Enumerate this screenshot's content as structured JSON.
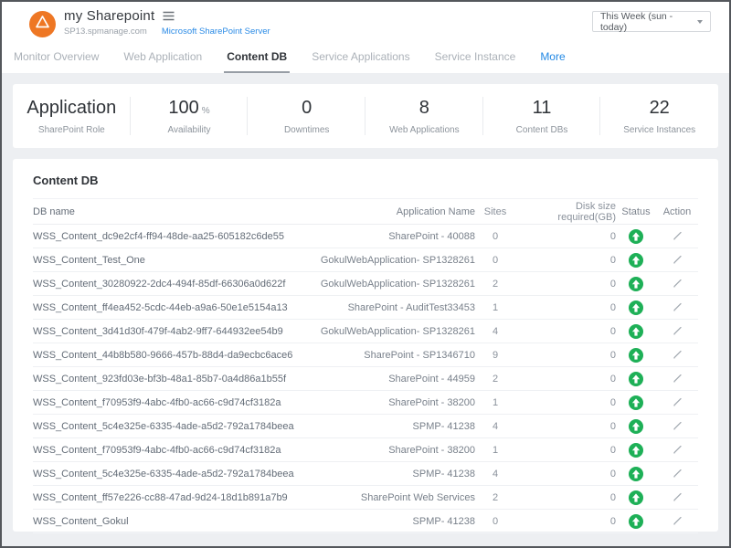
{
  "header": {
    "title": "my Sharepoint",
    "subdomain": "SP13.spmanage.com",
    "server_link": "Microsoft SharePoint Server",
    "time_range": "This Week (sun - today)"
  },
  "tabs": [
    {
      "label": "Monitor Overview",
      "active": false,
      "accent": false
    },
    {
      "label": "Web Application",
      "active": false,
      "accent": false
    },
    {
      "label": "Content DB",
      "active": true,
      "accent": false
    },
    {
      "label": "Service Applications",
      "active": false,
      "accent": false
    },
    {
      "label": "Service Instance",
      "active": false,
      "accent": false
    },
    {
      "label": "More",
      "active": false,
      "accent": true
    }
  ],
  "stats": [
    {
      "value": "Application",
      "suffix": "",
      "label": "SharePoint Role"
    },
    {
      "value": "100",
      "suffix": "%",
      "label": "Availability"
    },
    {
      "value": "0",
      "suffix": "",
      "label": "Downtimes"
    },
    {
      "value": "8",
      "suffix": "",
      "label": "Web Applications"
    },
    {
      "value": "11",
      "suffix": "",
      "label": "Content DBs"
    },
    {
      "value": "22",
      "suffix": "",
      "label": "Service Instances"
    }
  ],
  "table": {
    "section_title": "Content DB",
    "columns": [
      "DB name",
      "Application Name",
      "Sites",
      "Disk size required(GB)",
      "Status",
      "Action"
    ],
    "rows": [
      {
        "db_name": "WSS_Content_dc9e2cf4-ff94-48de-aa25-605182c6de55",
        "app_name": "SharePoint - 40088",
        "sites": "0",
        "disk_size": "0",
        "status": "up"
      },
      {
        "db_name": "WSS_Content_Test_One",
        "app_name": "GokulWebApplication- SP1328261",
        "sites": "0",
        "disk_size": "0",
        "status": "up"
      },
      {
        "db_name": "WSS_Content_30280922-2dc4-494f-85df-66306a0d622f",
        "app_name": "GokulWebApplication- SP1328261",
        "sites": "2",
        "disk_size": "0",
        "status": "up"
      },
      {
        "db_name": "WSS_Content_ff4ea452-5cdc-44eb-a9a6-50e1e5154a13",
        "app_name": "SharePoint - AuditTest33453",
        "sites": "1",
        "disk_size": "0",
        "status": "up"
      },
      {
        "db_name": "WSS_Content_3d41d30f-479f-4ab2-9ff7-644932ee54b9",
        "app_name": "GokulWebApplication- SP1328261",
        "sites": "4",
        "disk_size": "0",
        "status": "up"
      },
      {
        "db_name": "WSS_Content_44b8b580-9666-457b-88d4-da9ecbc6ace6",
        "app_name": "SharePoint - SP1346710",
        "sites": "9",
        "disk_size": "0",
        "status": "up"
      },
      {
        "db_name": "WSS_Content_923fd03e-bf3b-48a1-85b7-0a4d86a1b55f",
        "app_name": "SharePoint - 44959",
        "sites": "2",
        "disk_size": "0",
        "status": "up"
      },
      {
        "db_name": "WSS_Content_f70953f9-4abc-4fb0-ac66-c9d74cf3182a",
        "app_name": "SharePoint - 38200",
        "sites": "1",
        "disk_size": "0",
        "status": "up"
      },
      {
        "db_name": "WSS_Content_5c4e325e-6335-4ade-a5d2-792a1784beea",
        "app_name": "SPMP- 41238",
        "sites": "4",
        "disk_size": "0",
        "status": "up"
      },
      {
        "db_name": "WSS_Content_f70953f9-4abc-4fb0-ac66-c9d74cf3182a",
        "app_name": "SharePoint - 38200",
        "sites": "1",
        "disk_size": "0",
        "status": "up"
      },
      {
        "db_name": "WSS_Content_5c4e325e-6335-4ade-a5d2-792a1784beea",
        "app_name": "SPMP- 41238",
        "sites": "4",
        "disk_size": "0",
        "status": "up"
      },
      {
        "db_name": "WSS_Content_ff57e226-cc88-47ad-9d24-18d1b891a7b9",
        "app_name": "SharePoint Web Services",
        "sites": "2",
        "disk_size": "0",
        "status": "up"
      },
      {
        "db_name": "WSS_Content_Gokul",
        "app_name": "SPMP- 41238",
        "sites": "0",
        "disk_size": "0",
        "status": "up"
      }
    ]
  },
  "icons": {
    "logo": "warning-triangle",
    "menu": "hamburger",
    "dropdown": "caret-down",
    "status_up": "arrow-up-circle",
    "action": "edit-pencil"
  },
  "colors": {
    "brand_orange": "#ee7724",
    "status_green": "#1eb057",
    "link_blue": "#2288e4",
    "background_grey": "#edeff2",
    "frame_border": "#54575c"
  }
}
